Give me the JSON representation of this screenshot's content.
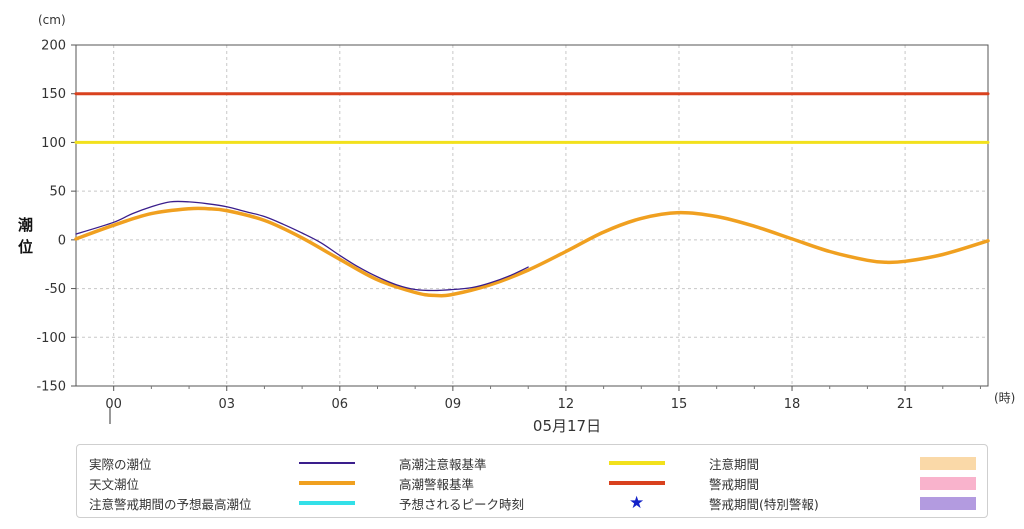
{
  "chart_data": {
    "type": "line",
    "unit_label": "(cm)",
    "ylabel": "潮位",
    "x_unit_label": "(時)",
    "date_label": "05月17日",
    "ylim": [
      -150,
      200
    ],
    "yticks": [
      200,
      150,
      100,
      50,
      0,
      -50,
      -100,
      -150
    ],
    "xlim": [
      -1,
      23.2
    ],
    "xticks": [
      {
        "value": 0,
        "label": "00"
      },
      {
        "value": 3,
        "label": "03"
      },
      {
        "value": 6,
        "label": "06"
      },
      {
        "value": 9,
        "label": "09"
      },
      {
        "value": 12,
        "label": "12"
      },
      {
        "value": 15,
        "label": "15"
      },
      {
        "value": 18,
        "label": "18"
      },
      {
        "value": 21,
        "label": "21"
      }
    ],
    "grid": true,
    "series": [
      {
        "name": "天文潮位",
        "color": "#f0a020",
        "x": [
          -1,
          0,
          1,
          2,
          2.5,
          3,
          4,
          5,
          6,
          7,
          8,
          8.5,
          9,
          10,
          11,
          12,
          13,
          14,
          15,
          16,
          17,
          18,
          19,
          20,
          20.5,
          21,
          22,
          23.2
        ],
        "y": [
          1,
          15,
          27,
          32,
          32,
          30,
          20,
          2,
          -20,
          -41,
          -54,
          -57,
          -56,
          -46,
          -31,
          -12,
          8,
          22,
          28,
          24,
          14,
          1,
          -12,
          -21,
          -23,
          -22,
          -15,
          -1
        ]
      },
      {
        "name": "実際の潮位",
        "color": "#3a1e8c",
        "x": [
          -1,
          0,
          0.5,
          1,
          1.5,
          2,
          2.5,
          3,
          3.5,
          4,
          4.5,
          5,
          5.5,
          6,
          6.5,
          7,
          7.5,
          8,
          8.5,
          9,
          9.5,
          10,
          10.5,
          11
        ],
        "y": [
          6,
          18,
          27,
          34,
          39,
          39,
          37,
          34,
          29,
          24,
          16,
          7,
          -3,
          -16,
          -28,
          -38,
          -46,
          -51,
          -52,
          -51,
          -49,
          -44,
          -37,
          -28
        ]
      },
      {
        "name": "高潮注意報基準",
        "color": "#f2e11c",
        "x": [
          -1,
          23.2
        ],
        "y": [
          100,
          100
        ]
      },
      {
        "name": "高潮警報基準",
        "color": "#d9411e",
        "x": [
          -1,
          23.2
        ],
        "y": [
          150,
          150
        ]
      }
    ]
  },
  "legend": [
    {
      "label": "実際の潮位",
      "kind": "thinline",
      "color": "#3a1e8c"
    },
    {
      "label": "高潮注意報基準",
      "kind": "line",
      "color": "#f2e11c"
    },
    {
      "label": "注意期間",
      "kind": "box",
      "color": "#fad9a8"
    },
    {
      "label": "天文潮位",
      "kind": "line",
      "color": "#f0a020"
    },
    {
      "label": "高潮警報基準",
      "kind": "line",
      "color": "#d9411e"
    },
    {
      "label": "警戒期間",
      "kind": "box",
      "color": "#f9b3cc"
    },
    {
      "label": "注意警戒期間の予想最高潮位",
      "kind": "line",
      "color": "#33e0e8"
    },
    {
      "label": "予想されるピーク時刻",
      "kind": "star",
      "color": "#1322c8",
      "symbol": "★"
    },
    {
      "label": "警戒期間(特別警報)",
      "kind": "box",
      "color": "#b39be0"
    }
  ]
}
